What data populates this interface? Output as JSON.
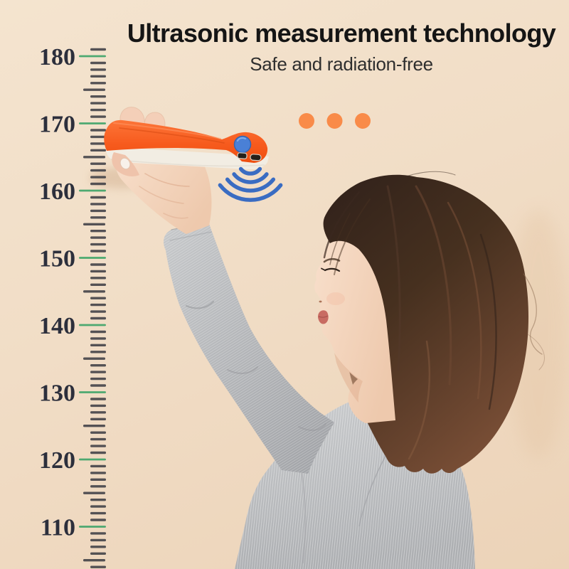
{
  "header": {
    "title": "Ultrasonic measurement technology",
    "subtitle": "Safe and radiation-free",
    "title_color": "#151515",
    "subtitle_color": "#2e2e2e"
  },
  "ruler": {
    "labels": [
      "180",
      "170",
      "160",
      "150",
      "140",
      "130",
      "120",
      "110"
    ],
    "major_tick_color": "#43a56c",
    "tick_color": "#3e3e44",
    "label_color": "#2c2f3c"
  },
  "graphics": {
    "wave_icon": "ultrasonic-waves-icon",
    "wave_count": 4,
    "wave_color": "#3a6cc2",
    "dots_icon": "ellipsis-dots-icon",
    "dot_count": 3,
    "dot_color": "#f98b49"
  },
  "device": {
    "name": "ultrasonic-height-measuring-device",
    "body_color": "#f75b1e",
    "base_color": "#f2ede3",
    "button_color": "#4a80d6",
    "sensor_color": "#262019"
  },
  "scene": {
    "wall_color": "#f1ddc6",
    "hair_color": "#4a3126",
    "skin_color": "#f5d9c4",
    "shirt_color": "#b7b9bc"
  }
}
